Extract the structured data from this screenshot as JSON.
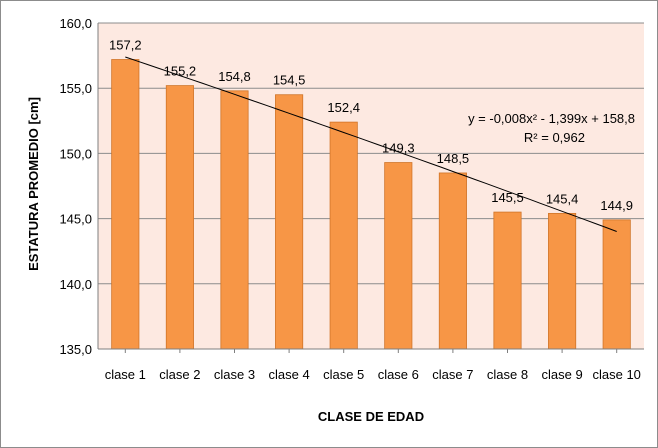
{
  "chart_data": {
    "type": "bar",
    "title": "",
    "xlabel": "CLASE DE EDAD",
    "ylabel": "ESTATURA PROMEDIO [cm]",
    "ylim": [
      135.0,
      160.0
    ],
    "yticks": [
      "135,0",
      "140,0",
      "145,0",
      "150,0",
      "155,0",
      "160,0"
    ],
    "ytick_values": [
      135,
      140,
      145,
      150,
      155,
      160
    ],
    "grid": true,
    "categories": [
      "clase 1",
      "clase 2",
      "clase 3",
      "clase 4",
      "clase 5",
      "clase 6",
      "clase 7",
      "clase 8",
      "clase 9",
      "clase 10"
    ],
    "values": [
      157.2,
      155.2,
      154.8,
      154.5,
      152.4,
      149.3,
      148.5,
      145.5,
      145.4,
      144.9
    ],
    "value_labels": [
      "157,2",
      "155,2",
      "154,8",
      "154,5",
      "152,4",
      "149,3",
      "148,5",
      "145,5",
      "145,4",
      "144,9"
    ],
    "trendline": {
      "type": "polynomial",
      "coefficients": [
        -0.008,
        -1.399,
        158.8
      ],
      "equation": "y = -0,008x² - 1,399x + 158,8",
      "r_squared": "R² = 0,962"
    },
    "colors": {
      "bar_fill": "#f79646",
      "bar_edge": "#d07428",
      "plot_bg": "#fde9e1",
      "trendline": "#000000"
    }
  }
}
